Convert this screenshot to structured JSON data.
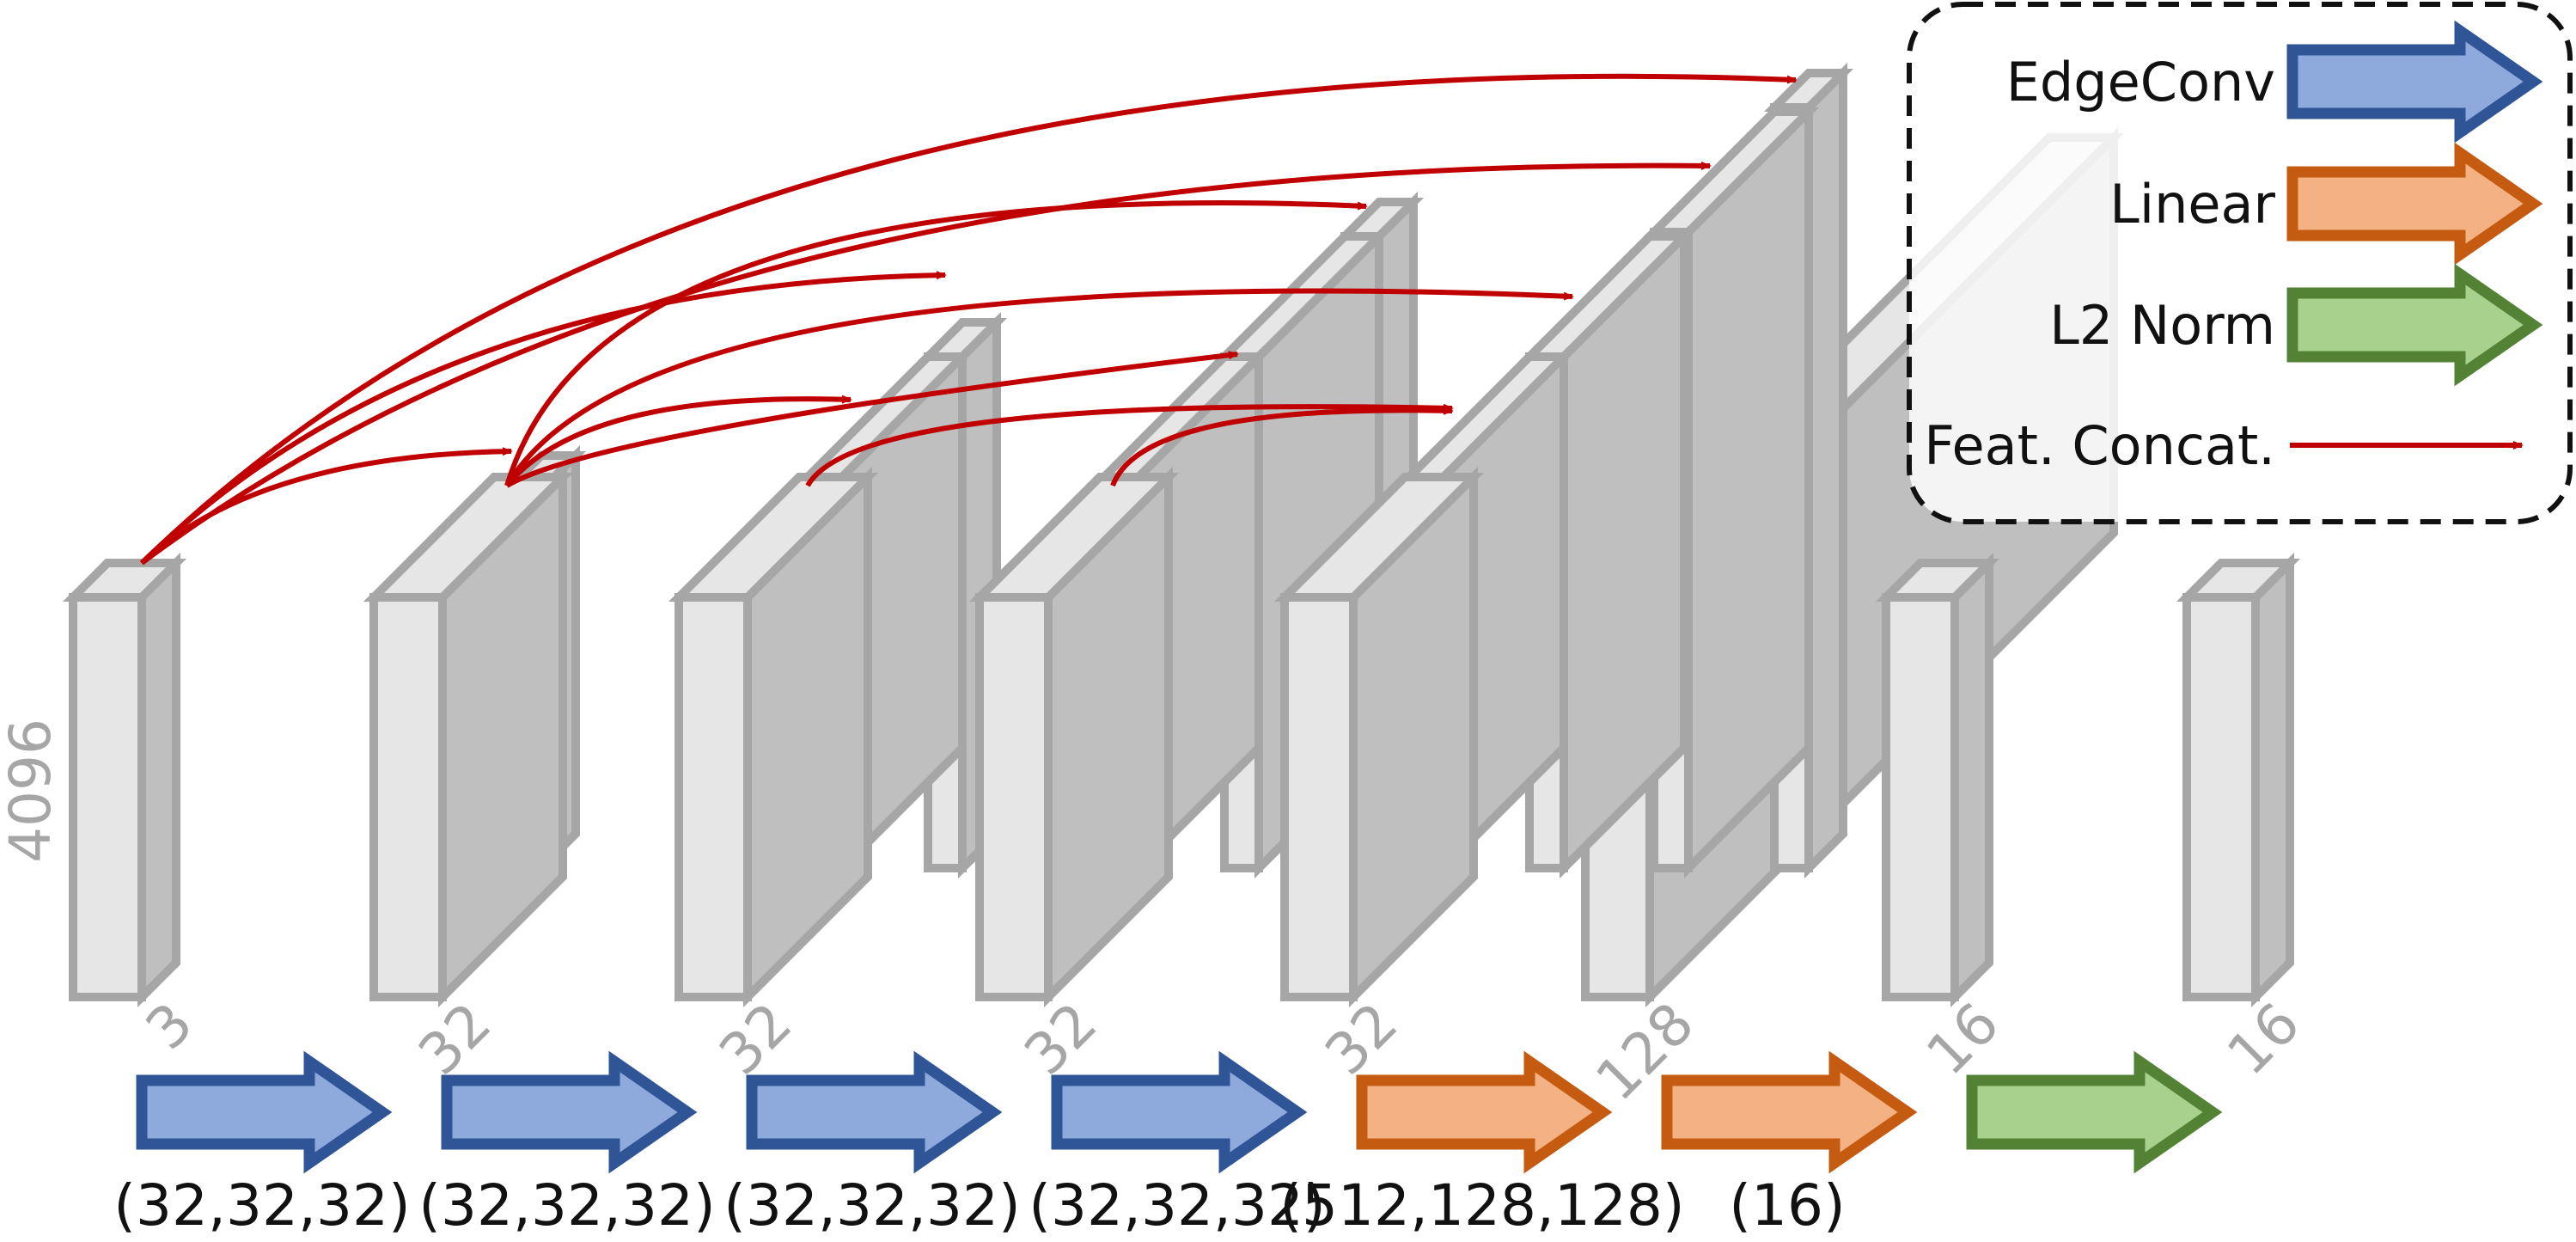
{
  "input_height": "4096",
  "layers": [
    {
      "id": "l0",
      "width": "3"
    },
    {
      "id": "l1",
      "width": "32"
    },
    {
      "id": "l2",
      "width": "32"
    },
    {
      "id": "l3",
      "width": "32"
    },
    {
      "id": "l4",
      "width": "32"
    },
    {
      "id": "l5",
      "width": "128"
    },
    {
      "id": "l6",
      "width": "16"
    },
    {
      "id": "l7",
      "width": "16"
    }
  ],
  "operations": [
    {
      "type": "EdgeConv",
      "label": "(32,32,32)"
    },
    {
      "type": "EdgeConv",
      "label": "(32,32,32)"
    },
    {
      "type": "EdgeConv",
      "label": "(32,32,32)"
    },
    {
      "type": "EdgeConv",
      "label": "(32,32,32)"
    },
    {
      "type": "Linear",
      "label": "(512,128,128)"
    },
    {
      "type": "Linear",
      "label": "(16)"
    },
    {
      "type": "L2 Norm",
      "label": ""
    }
  ],
  "legend": {
    "items": [
      {
        "label": "EdgeConv",
        "kind": "arrow",
        "fill": "#8eaadc",
        "stroke": "#2f5597"
      },
      {
        "label": "Linear",
        "kind": "arrow",
        "fill": "#f4b183",
        "stroke": "#c55a11"
      },
      {
        "label": "L2 Norm",
        "kind": "arrow",
        "fill": "#a9d18e",
        "stroke": "#548235"
      },
      {
        "label": "Feat. Concat.",
        "kind": "line",
        "color": "#c00000"
      }
    ]
  },
  "colors": {
    "box_front": "#e6e6e6",
    "box_side": "#bfbfbf",
    "box_stroke": "#a6a6a6",
    "concat_line": "#c00000"
  }
}
